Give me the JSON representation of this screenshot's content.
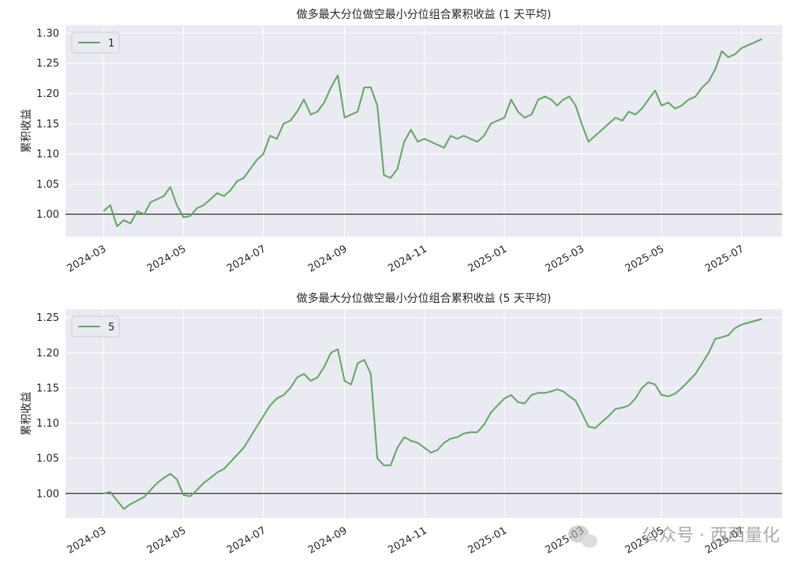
{
  "chart_data": [
    {
      "type": "line",
      "title": "做多最大分位做空最小分位组合累积收益 (1 天平均)",
      "ylabel": "累积收益",
      "x": [
        "2024-03",
        "2024-03",
        "2024-03",
        "2024-03",
        "2024-03",
        "2024-03",
        "2024-04",
        "2024-04",
        "2024-04",
        "2024-04",
        "2024-04",
        "2024-04",
        "2024-05",
        "2024-05",
        "2024-05",
        "2024-05",
        "2024-05",
        "2024-05",
        "2024-06",
        "2024-06",
        "2024-06",
        "2024-06",
        "2024-06",
        "2024-06",
        "2024-07",
        "2024-07",
        "2024-07",
        "2024-07",
        "2024-07",
        "2024-07",
        "2024-08",
        "2024-08",
        "2024-08",
        "2024-08",
        "2024-08",
        "2024-08",
        "2024-09",
        "2024-09",
        "2024-09",
        "2024-09",
        "2024-09",
        "2024-09",
        "2024-10",
        "2024-10",
        "2024-10",
        "2024-10",
        "2024-10",
        "2024-10",
        "2024-11",
        "2024-11",
        "2024-11",
        "2024-11",
        "2024-11",
        "2024-11",
        "2024-12",
        "2024-12",
        "2024-12",
        "2024-12",
        "2024-12",
        "2024-12",
        "2025-01",
        "2025-01",
        "2025-01",
        "2025-01",
        "2025-01",
        "2025-01",
        "2025-02",
        "2025-02",
        "2025-02",
        "2025-02",
        "2025-02",
        "2025-02",
        "2025-03",
        "2025-03",
        "2025-03",
        "2025-03",
        "2025-03",
        "2025-03",
        "2025-04",
        "2025-04",
        "2025-04",
        "2025-04",
        "2025-04",
        "2025-04",
        "2025-05",
        "2025-05",
        "2025-05",
        "2025-05",
        "2025-05",
        "2025-05",
        "2025-06",
        "2025-06",
        "2025-06",
        "2025-06",
        "2025-06",
        "2025-06",
        "2025-07",
        "2025-07"
      ],
      "series": [
        {
          "name": "1",
          "color": "#5ea85e",
          "values": [
            1.005,
            1.015,
            0.98,
            0.99,
            0.985,
            1.005,
            1.0,
            1.02,
            1.025,
            1.03,
            1.045,
            1.015,
            0.995,
            0.997,
            1.01,
            1.015,
            1.025,
            1.035,
            1.03,
            1.04,
            1.055,
            1.06,
            1.075,
            1.09,
            1.1,
            1.13,
            1.125,
            1.15,
            1.155,
            1.17,
            1.19,
            1.165,
            1.17,
            1.185,
            1.21,
            1.23,
            1.16,
            1.165,
            1.17,
            1.21,
            1.21,
            1.18,
            1.065,
            1.06,
            1.075,
            1.12,
            1.14,
            1.12,
            1.125,
            1.12,
            1.115,
            1.11,
            1.13,
            1.125,
            1.13,
            1.125,
            1.12,
            1.13,
            1.15,
            1.155,
            1.16,
            1.19,
            1.17,
            1.16,
            1.165,
            1.19,
            1.195,
            1.19,
            1.18,
            1.19,
            1.195,
            1.18,
            1.15,
            1.12,
            1.13,
            1.14,
            1.15,
            1.16,
            1.155,
            1.17,
            1.165,
            1.175,
            1.19,
            1.205,
            1.18,
            1.185,
            1.175,
            1.18,
            1.19,
            1.195,
            1.21,
            1.22,
            1.24,
            1.27,
            1.26,
            1.265,
            1.275,
            1.29
          ]
        }
      ],
      "xlim": [
        "2024-02",
        "2025-08"
      ],
      "xticks": [
        "2024-03",
        "2024-05",
        "2024-07",
        "2024-09",
        "2024-11",
        "2025-01",
        "2025-03",
        "2025-05",
        "2025-07"
      ],
      "ylim": [
        0.963,
        1.313
      ],
      "yticks": [
        {
          "value": 1.0,
          "label": "1.00"
        },
        1.05,
        {
          "value": 1.1,
          "label": "1.10"
        },
        1.15,
        {
          "value": 1.2,
          "label": "1.20"
        },
        1.25,
        {
          "value": 1.3,
          "label": "1.30"
        }
      ],
      "hline": 1.0,
      "grid": true,
      "legend": "upper left"
    },
    {
      "type": "line",
      "title": "做多最大分位做空最小分位组合累积收益 (5 天平均)",
      "ylabel": "累积收益",
      "x": [
        "2024-03",
        "2024-03",
        "2024-03",
        "2024-03",
        "2024-03",
        "2024-03",
        "2024-04",
        "2024-04",
        "2024-04",
        "2024-04",
        "2024-04",
        "2024-04",
        "2024-05",
        "2024-05",
        "2024-05",
        "2024-05",
        "2024-05",
        "2024-05",
        "2024-06",
        "2024-06",
        "2024-06",
        "2024-06",
        "2024-06",
        "2024-06",
        "2024-07",
        "2024-07",
        "2024-07",
        "2024-07",
        "2024-07",
        "2024-07",
        "2024-08",
        "2024-08",
        "2024-08",
        "2024-08",
        "2024-08",
        "2024-08",
        "2024-09",
        "2024-09",
        "2024-09",
        "2024-09",
        "2024-09",
        "2024-09",
        "2024-10",
        "2024-10",
        "2024-10",
        "2024-10",
        "2024-10",
        "2024-10",
        "2024-11",
        "2024-11",
        "2024-11",
        "2024-11",
        "2024-11",
        "2024-11",
        "2024-12",
        "2024-12",
        "2024-12",
        "2024-12",
        "2024-12",
        "2024-12",
        "2025-01",
        "2025-01",
        "2025-01",
        "2025-01",
        "2025-01",
        "2025-01",
        "2025-02",
        "2025-02",
        "2025-02",
        "2025-02",
        "2025-02",
        "2025-02",
        "2025-03",
        "2025-03",
        "2025-03",
        "2025-03",
        "2025-03",
        "2025-03",
        "2025-04",
        "2025-04",
        "2025-04",
        "2025-04",
        "2025-04",
        "2025-04",
        "2025-05",
        "2025-05",
        "2025-05",
        "2025-05",
        "2025-05",
        "2025-05",
        "2025-06",
        "2025-06",
        "2025-06",
        "2025-06",
        "2025-06",
        "2025-06",
        "2025-07",
        "2025-07"
      ],
      "series": [
        {
          "name": "5",
          "color": "#5ea85e",
          "values": [
            1.0,
            1.002,
            0.99,
            0.978,
            0.985,
            0.99,
            0.995,
            1.005,
            1.015,
            1.022,
            1.028,
            1.02,
            0.998,
            0.996,
            1.005,
            1.015,
            1.022,
            1.03,
            1.035,
            1.045,
            1.055,
            1.065,
            1.08,
            1.095,
            1.11,
            1.125,
            1.135,
            1.14,
            1.15,
            1.165,
            1.17,
            1.16,
            1.165,
            1.18,
            1.2,
            1.205,
            1.16,
            1.155,
            1.185,
            1.19,
            1.17,
            1.05,
            1.04,
            1.04,
            1.065,
            1.08,
            1.075,
            1.072,
            1.065,
            1.058,
            1.062,
            1.072,
            1.078,
            1.08,
            1.085,
            1.087,
            1.087,
            1.098,
            1.115,
            1.125,
            1.135,
            1.14,
            1.13,
            1.128,
            1.14,
            1.143,
            1.143,
            1.145,
            1.148,
            1.145,
            1.138,
            1.132,
            1.115,
            1.095,
            1.093,
            1.102,
            1.11,
            1.12,
            1.122,
            1.125,
            1.135,
            1.15,
            1.158,
            1.155,
            1.14,
            1.138,
            1.142,
            1.15,
            1.16,
            1.17,
            1.185,
            1.2,
            1.22,
            1.222,
            1.225,
            1.235,
            1.24,
            1.248
          ]
        }
      ],
      "xlim": [
        "2024-02",
        "2025-08"
      ],
      "xticks": [
        "2024-03",
        "2024-05",
        "2024-07",
        "2024-09",
        "2024-11",
        "2025-01",
        "2025-03",
        "2025-05",
        "2025-07"
      ],
      "ylim": [
        0.965,
        1.262
      ],
      "yticks": [
        {
          "value": 1.0,
          "label": "1.00"
        },
        1.05,
        {
          "value": 1.1,
          "label": "1.10"
        },
        1.15,
        {
          "value": 1.2,
          "label": "1.20"
        },
        1.25
      ],
      "hline": 1.0,
      "grid": true,
      "legend": "upper left"
    }
  ],
  "watermark": "公众号 · 西西量化"
}
